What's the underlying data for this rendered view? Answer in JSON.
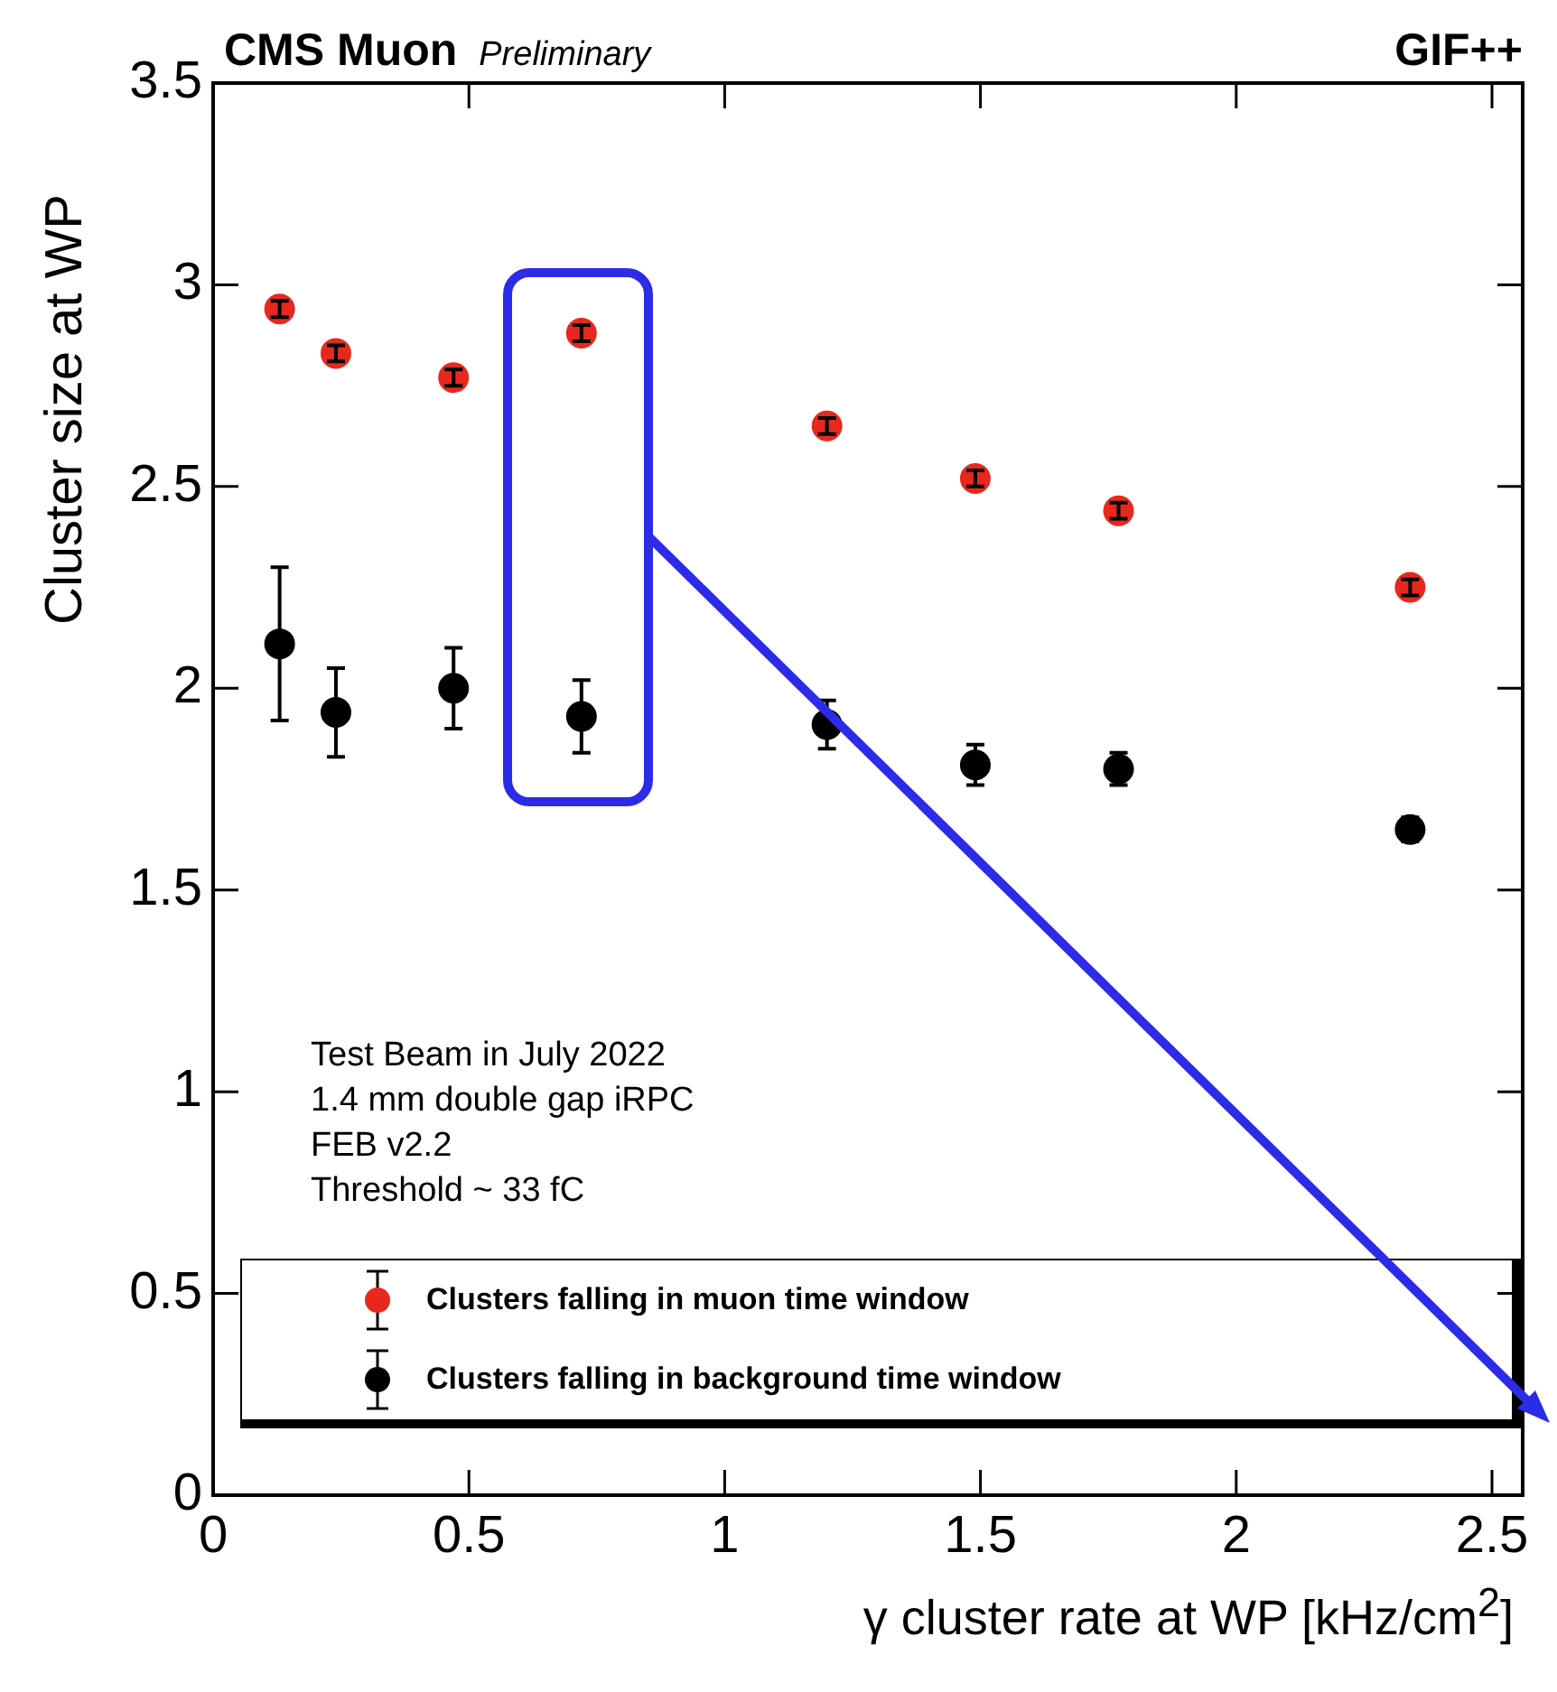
{
  "chart_data": {
    "type": "scatter",
    "title": "CMS Muon",
    "subtitle": "Preliminary",
    "xlabel": "γ cluster rate at WP [kHz/cm$^{2}$]",
    "ylabel": "Cluster size at WP",
    "annotations": [
      "GIF++",
      "Test Beam in July 2022",
      "1.4 mm double gap iRPC",
      "FEB v2.2",
      "Threshold ~ 33 fC"
    ],
    "x": [
      0.13,
      0.24,
      0.47,
      0.72,
      1.2,
      1.49,
      1.77,
      2.34
    ],
    "series": [
      {
        "name": "Clusters falling in muon time window",
        "color": "#e8281e",
        "values": [
          2.94,
          2.83,
          2.77,
          2.88,
          2.65,
          2.52,
          2.44,
          2.25
        ],
        "errors": [
          0.02,
          0.02,
          0.02,
          0.02,
          0.02,
          0.02,
          0.02,
          0.02
        ]
      },
      {
        "name": "Clusters falling in background time window",
        "color": "#000000",
        "values": [
          2.11,
          1.94,
          2.0,
          1.93,
          1.91,
          1.81,
          1.8,
          1.65
        ],
        "errors": [
          0.19,
          0.11,
          0.1,
          0.09,
          0.06,
          0.05,
          0.04,
          0.03
        ]
      }
    ],
    "xlim": [
      0,
      2.56
    ],
    "xticks": [
      0,
      0.5,
      1,
      1.5,
      2,
      2.5
    ],
    "ylim": [
      0,
      3.5
    ],
    "yticks": [
      0,
      0.5,
      1,
      1.5,
      2,
      2.5,
      3,
      3.5
    ],
    "marker": "circle",
    "legend": "bottom left",
    "grid": false
  }
}
